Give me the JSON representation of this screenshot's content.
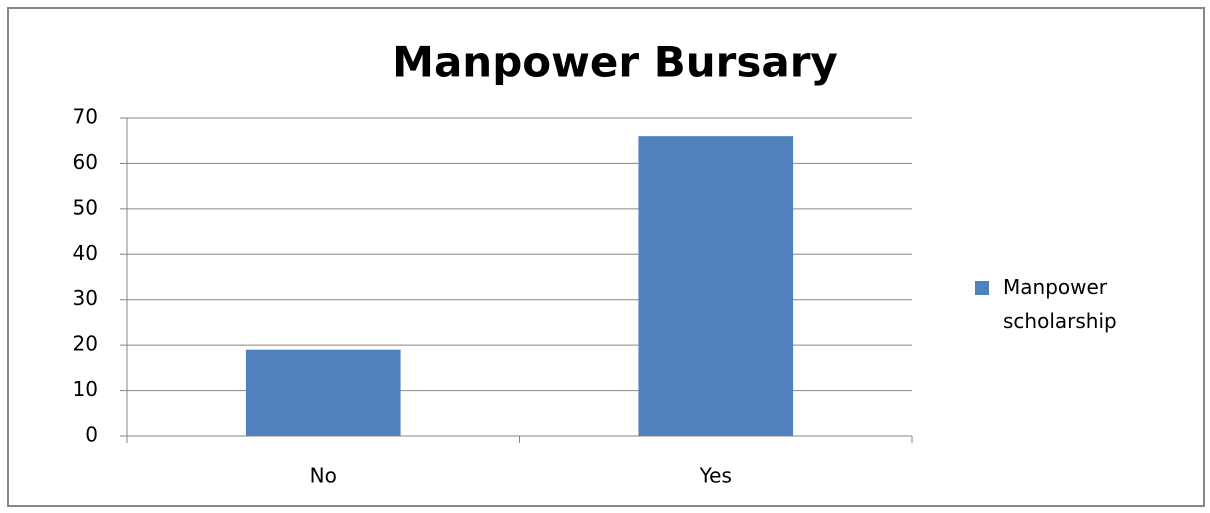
{
  "chart_data": {
    "type": "bar",
    "title": "Manpower Bursary",
    "categories": [
      "No",
      "Yes"
    ],
    "series": [
      {
        "name": "Manpower scholarship",
        "color": "#4f81bd",
        "values": [
          19,
          66
        ]
      }
    ],
    "ylim": [
      0,
      70
    ],
    "yticks": [
      0,
      10,
      20,
      30,
      40,
      50,
      60,
      70
    ],
    "grid": true,
    "legend": "right"
  }
}
